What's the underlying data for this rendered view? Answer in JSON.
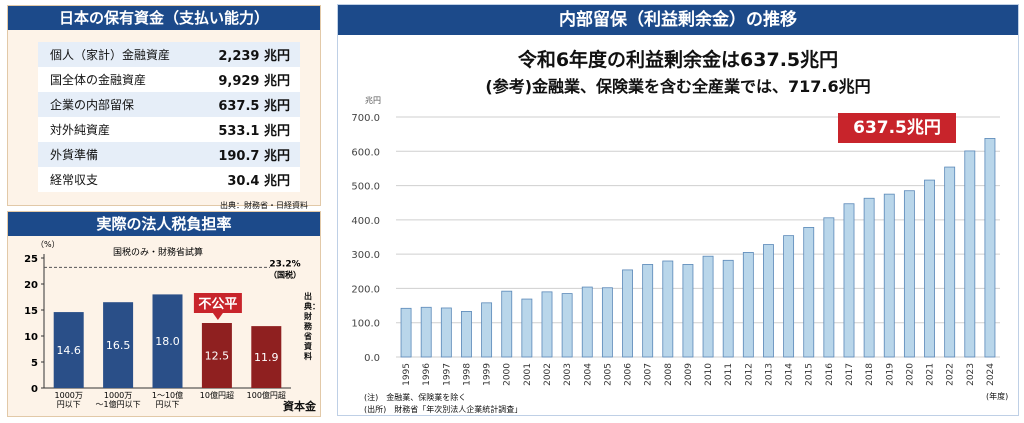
{
  "assets_panel": {
    "title": "日本の保有資金（支払い能力）",
    "rows": [
      {
        "label": "個人（家計）金融資産",
        "value": "2,239 兆円"
      },
      {
        "label": "国全体の金融資産",
        "value": "9,929 兆円"
      },
      {
        "label": "企業の内部留保",
        "value": "637.5 兆円"
      },
      {
        "label": "対外純資産",
        "value": "533.1 兆円"
      },
      {
        "label": "外貨準備",
        "value": "190.7 兆円"
      },
      {
        "label": "経常収支",
        "value": "30.4 兆円"
      }
    ],
    "source": "出典：財務省・日経資料"
  },
  "tax_panel": {
    "title": "実際の法人税負担率",
    "unit_label": "（%）",
    "note": "国税のみ・財務省試算",
    "ref_label_value": "23.2%",
    "ref_label_name": "（国税）",
    "badge": "不公平",
    "vertical_source": "出典：財務省資料",
    "axis_unit": "資本金"
  },
  "retained_panel": {
    "title": "内部留保（利益剰余金）の推移",
    "headline": "令和6年度の利益剰余金は637.5兆円",
    "subheadline": "(参考)金融業、保険業を含む全産業では、717.6兆円",
    "callout": "637.5兆円",
    "note1": "(注)　金融業、保険業を除く",
    "note2": "(出所)　財務省「年次別法人企業統計調査」",
    "x_unit": "(年度)"
  },
  "chart_data": [
    {
      "type": "bar",
      "title": "実際の法人税負担率",
      "ylabel": "（%）",
      "categories": [
        [
          "1000万",
          "円以下"
        ],
        [
          "1000万",
          "～1億円以下"
        ],
        [
          "1～10億",
          "円以下"
        ],
        [
          "10億円超"
        ],
        [
          "100億円超"
        ]
      ],
      "values": [
        14.6,
        16.5,
        18.0,
        12.5,
        11.9
      ],
      "value_labels": [
        "14.6",
        "16.5",
        "18.0",
        "12.5",
        "11.9"
      ],
      "bar_colors": [
        "#2a4f88",
        "#2a4f88",
        "#2a4f88",
        "#8f2020",
        "#8f2020"
      ],
      "reference_line": 23.2,
      "ylim": [
        0,
        25
      ],
      "yticks": [
        "0",
        "5",
        "10",
        "15",
        "20",
        "25"
      ],
      "xlabel": "資本金",
      "grid": false
    },
    {
      "type": "bar",
      "title": "内部留保（利益剰余金）の推移",
      "ylabel": "兆円",
      "xlabel": "(年度)",
      "categories": [
        "1995",
        "1996",
        "1997",
        "1998",
        "1999",
        "2000",
        "2001",
        "2002",
        "2003",
        "2004",
        "2005",
        "2006",
        "2007",
        "2008",
        "2009",
        "2010",
        "2011",
        "2012",
        "2013",
        "2014",
        "2015",
        "2016",
        "2017",
        "2018",
        "2019",
        "2020",
        "2021",
        "2022",
        "2023",
        "2024"
      ],
      "values": [
        142,
        145,
        143,
        133,
        158,
        192,
        169,
        190,
        185,
        204,
        202,
        254,
        270,
        280,
        270,
        294,
        282,
        305,
        328,
        354,
        378,
        406,
        447,
        463,
        475,
        485,
        516,
        554,
        601,
        637.5
      ],
      "bar_color": "#b9d6ea",
      "ylim": [
        0,
        700
      ],
      "yticks": [
        "0.0",
        "100.0",
        "200.0",
        "300.0",
        "400.0",
        "500.0",
        "600.0",
        "700.0"
      ],
      "grid": true
    }
  ]
}
